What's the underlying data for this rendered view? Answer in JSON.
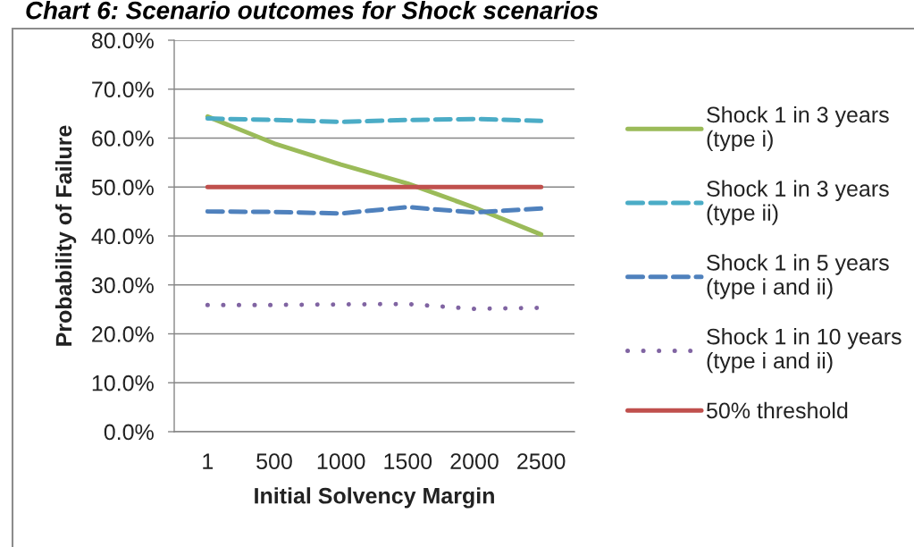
{
  "chart_data": {
    "type": "line",
    "title": "Chart 6: Scenario outcomes for Shock scenarios",
    "xlabel": "Initial Solvency Margin",
    "ylabel": "Probability of Failure",
    "categories": [
      "1",
      "500",
      "1000",
      "1500",
      "2000",
      "2500"
    ],
    "series": [
      {
        "name": "Shock 1 in 3 years\n(type i)",
        "color": "#9bbb59",
        "line_style": "solid",
        "values": [
          64.4,
          58.9,
          54.6,
          50.7,
          45.8,
          40.3
        ]
      },
      {
        "name": "Shock 1 in 3 years\n(type ii)",
        "color": "#4bacc6",
        "line_style": "dashed",
        "values": [
          64.0,
          63.7,
          63.3,
          63.7,
          63.9,
          63.5
        ]
      },
      {
        "name": "Shock 1 in 5 years\n(type i and ii)",
        "color": "#4f81bd",
        "line_style": "dashed",
        "values": [
          45.0,
          44.9,
          44.6,
          45.9,
          44.8,
          45.6
        ]
      },
      {
        "name": "Shock 1 in 10 years\n(type i and ii)",
        "color": "#8064a2",
        "line_style": "dotted",
        "values": [
          25.9,
          25.9,
          26.0,
          26.1,
          25.1,
          25.3
        ]
      },
      {
        "name": "50% threshold",
        "color": "#c0504d",
        "line_style": "solid",
        "values": [
          50,
          50,
          50,
          50,
          50,
          50
        ]
      }
    ],
    "ylim": [
      0,
      80
    ],
    "yticks": [
      {
        "value": 0,
        "label": "0.0%"
      },
      {
        "value": 10,
        "label": "10.0%"
      },
      {
        "value": 20,
        "label": "20.0%"
      },
      {
        "value": 30,
        "label": "30.0%"
      },
      {
        "value": 40,
        "label": "40.0%"
      },
      {
        "value": 50,
        "label": "50.0%"
      },
      {
        "value": 60,
        "label": "60.0%"
      },
      {
        "value": 70,
        "label": "70.0%"
      },
      {
        "value": 80,
        "label": "80.0%"
      }
    ],
    "grid": "y",
    "legend": "right"
  }
}
